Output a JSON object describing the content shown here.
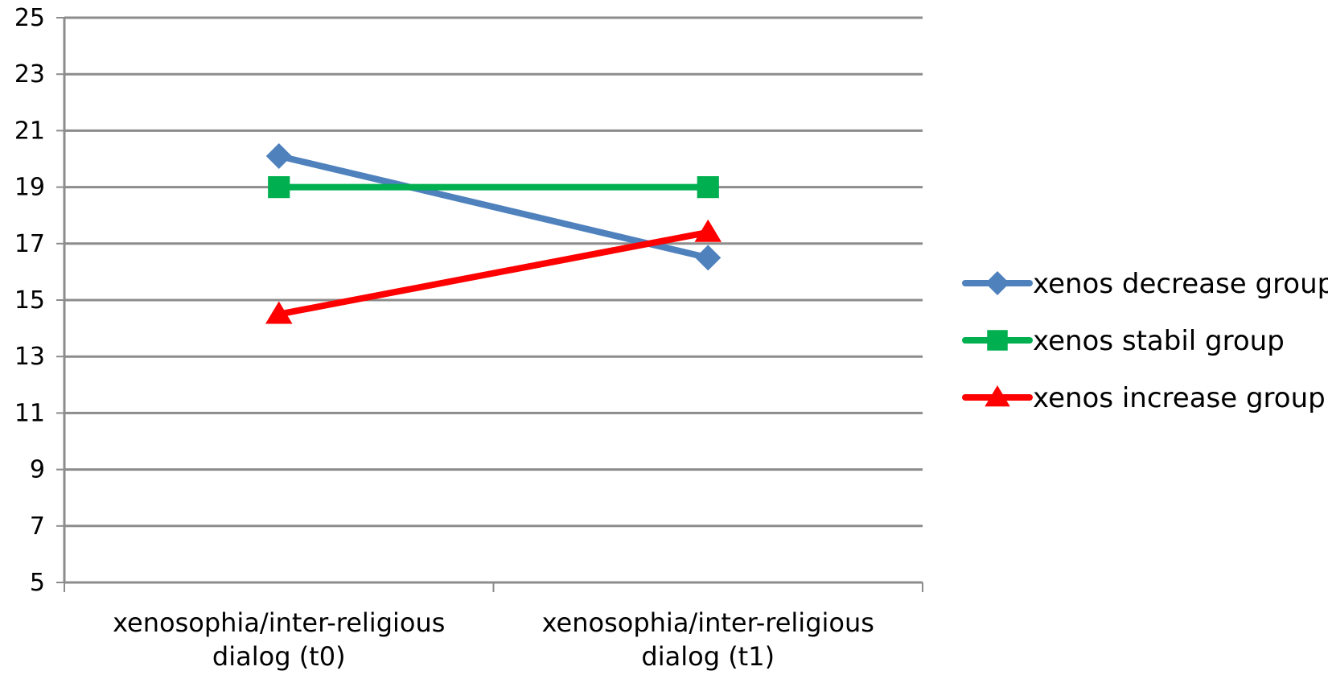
{
  "chart_data": {
    "type": "line",
    "title": "",
    "xlabel": "",
    "ylabel": "",
    "categories": [
      [
        "xenosophia/inter-religious",
        "dialog (t0)"
      ],
      [
        "xenosophia/inter-religious",
        "dialog (t1)"
      ]
    ],
    "ylim": [
      5,
      25
    ],
    "yticks": [
      5,
      7,
      9,
      11,
      13,
      15,
      17,
      19,
      21,
      23,
      25
    ],
    "grid": true,
    "legend_position": "right",
    "series": [
      {
        "name": "xenos decrease group",
        "values": [
          20.1,
          16.5
        ],
        "color": "#4F81BD",
        "marker": "diamond"
      },
      {
        "name": "xenos stabil group",
        "values": [
          19.0,
          19.0
        ],
        "color": "#00B050",
        "marker": "square"
      },
      {
        "name": "xenos increase group",
        "values": [
          14.5,
          17.4
        ],
        "color": "#FF0000",
        "marker": "triangle"
      }
    ]
  }
}
